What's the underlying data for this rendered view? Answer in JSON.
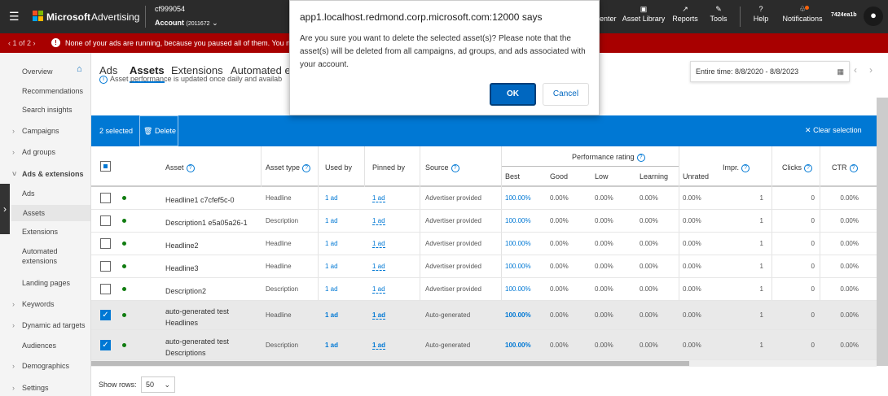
{
  "topbar": {
    "app_name": "Microsoft",
    "product": "Advertising",
    "account_id": "cf999054",
    "account_label": "Account",
    "account_number": "(2011672",
    "nav": [
      {
        "label": "enter",
        "icon": "center-icon"
      },
      {
        "label": "Asset Library",
        "icon": "asset-library-icon"
      },
      {
        "label": "Reports",
        "icon": "chart-icon"
      },
      {
        "label": "Tools",
        "icon": "wrench-icon"
      },
      {
        "label": "Help",
        "icon": "question-icon"
      },
      {
        "label": "Notifications",
        "icon": "bell-icon"
      }
    ],
    "user": "7424ea1b"
  },
  "banner": {
    "pager": "1 of 2",
    "message": "None of your ads are running, because you paused all of them. You need to"
  },
  "sidebar": {
    "items": [
      "Overview",
      "Recommendations",
      "Search insights",
      "Campaigns",
      "Ad groups",
      "Ads & extensions",
      "Ads",
      "Assets",
      "Extensions",
      "Automated extensions",
      "Landing pages",
      "Keywords",
      "Dynamic ad targets",
      "Audiences",
      "Demographics",
      "Settings"
    ]
  },
  "tabs": [
    "Ads",
    "Assets",
    "Extensions",
    "Automated e"
  ],
  "date_range": "Entire time: 8/8/2020 - 8/8/2023",
  "info": "Asset performance is updated once daily and availab",
  "selection": {
    "count": "2 selected",
    "delete": "Delete",
    "clear": "Clear selection"
  },
  "table": {
    "headers": {
      "asset": "Asset",
      "asset_type": "Asset type",
      "used_by": "Used by",
      "pinned_by": "Pinned by",
      "source": "Source",
      "perf": "Performance rating",
      "best": "Best",
      "good": "Good",
      "low": "Low",
      "learning": "Learning",
      "unrated": "Unrated",
      "impr": "Impr.",
      "clicks": "Clicks",
      "ctr": "CTR"
    },
    "rows": [
      {
        "checked": false,
        "asset": "Headline1 c7cfef5c-0",
        "type": "Headline",
        "used": "1 ad",
        "pinned": "1 ad",
        "source": "Advertiser provided",
        "best": "100.00%",
        "good": "0.00%",
        "low": "0.00%",
        "learning": "0.00%",
        "unrated": "0.00%",
        "impr": "1",
        "clicks": "0",
        "ctr": "0.00%"
      },
      {
        "checked": false,
        "asset": "Description1 e5a05a26-1",
        "type": "Description",
        "used": "1 ad",
        "pinned": "1 ad",
        "source": "Advertiser provided",
        "best": "100.00%",
        "good": "0.00%",
        "low": "0.00%",
        "learning": "0.00%",
        "unrated": "0.00%",
        "impr": "1",
        "clicks": "0",
        "ctr": "0.00%"
      },
      {
        "checked": false,
        "asset": "Headline2",
        "type": "Headline",
        "used": "1 ad",
        "pinned": "1 ad",
        "source": "Advertiser provided",
        "best": "100.00%",
        "good": "0.00%",
        "low": "0.00%",
        "learning": "0.00%",
        "unrated": "0.00%",
        "impr": "1",
        "clicks": "0",
        "ctr": "0.00%"
      },
      {
        "checked": false,
        "asset": "Headline3",
        "type": "Headline",
        "used": "1 ad",
        "pinned": "1 ad",
        "source": "Advertiser provided",
        "best": "100.00%",
        "good": "0.00%",
        "low": "0.00%",
        "learning": "0.00%",
        "unrated": "0.00%",
        "impr": "1",
        "clicks": "0",
        "ctr": "0.00%"
      },
      {
        "checked": false,
        "asset": "Description2",
        "type": "Description",
        "used": "1 ad",
        "pinned": "1 ad",
        "source": "Advertiser provided",
        "best": "100.00%",
        "good": "0.00%",
        "low": "0.00%",
        "learning": "0.00%",
        "unrated": "0.00%",
        "impr": "1",
        "clicks": "0",
        "ctr": "0.00%"
      },
      {
        "checked": true,
        "asset": "auto-generated test Headlines",
        "type": "Headline",
        "used": "1 ad",
        "pinned": "1 ad",
        "source": "Auto-generated",
        "best": "100.00%",
        "good": "0.00%",
        "low": "0.00%",
        "learning": "0.00%",
        "unrated": "0.00%",
        "impr": "1",
        "clicks": "0",
        "ctr": "0.00%"
      },
      {
        "checked": true,
        "asset": "auto-generated test Descriptions",
        "type": "Description",
        "used": "1 ad",
        "pinned": "1 ad",
        "source": "Auto-generated",
        "best": "100.00%",
        "good": "0.00%",
        "low": "0.00%",
        "learning": "0.00%",
        "unrated": "0.00%",
        "impr": "1",
        "clicks": "0",
        "ctr": "0.00%"
      }
    ]
  },
  "footer": {
    "show_rows_label": "Show rows:",
    "show_rows_value": "50"
  },
  "dialog": {
    "title": "app1.localhost.redmond.corp.microsoft.com:12000 says",
    "message": "Are you sure you want to delete the selected asset(s)? Please note that the asset(s) will be deleted from all campaigns, ad groups, and ads associated with your account.",
    "ok": "OK",
    "cancel": "Cancel"
  },
  "colors": {
    "topbar": "#2b2b2b",
    "banner": "#a80000",
    "accent": "#0078d4",
    "status_active": "#107c10"
  }
}
